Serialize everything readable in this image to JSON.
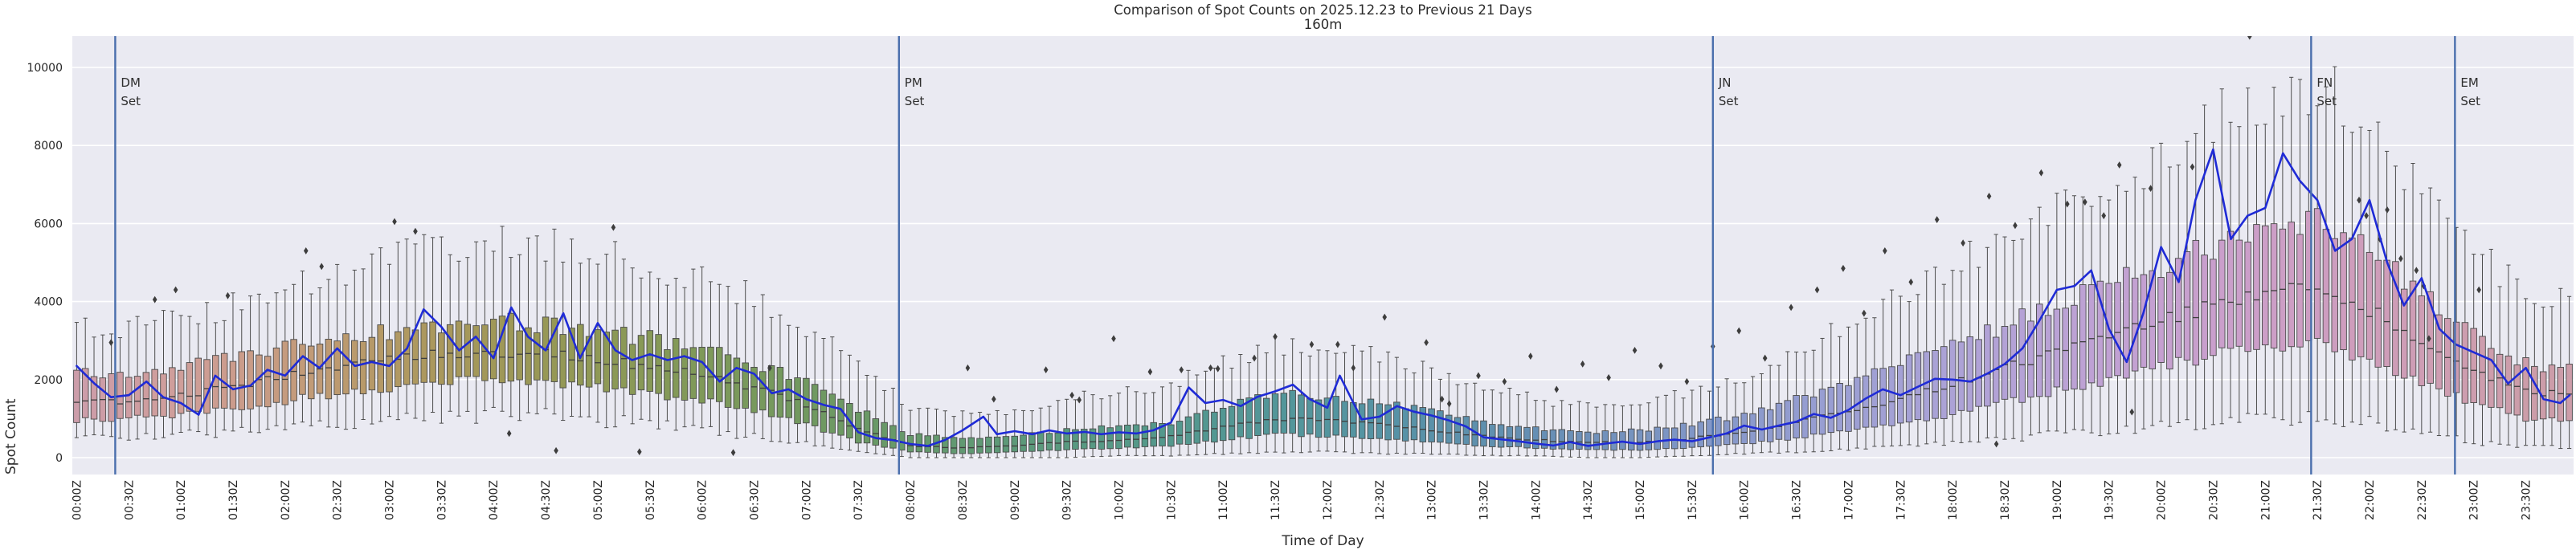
{
  "title": "Comparison of Spot Counts on 2025.12.23 to Previous 21 Days",
  "subtitle": "160m",
  "xlabel": "Time of Day",
  "ylabel": "Spot Count",
  "colors": {
    "figure_bg": "#ffffff",
    "axes_bg": "#eaeaf2",
    "grid": "#ffffff",
    "today_line": "#1f2bd6",
    "event_line": "#4a6fad",
    "outlier": "#3d3d3d",
    "box_edge": "#4a4a4a",
    "median": "#3f3f3f",
    "whisker": "#4d4d4d",
    "text": "#262626"
  },
  "chart_data": {
    "type": "box+line",
    "title": "Comparison of Spot Counts on 2025.12.23 to Previous 21 Days",
    "subtitle": "160m",
    "xlabel": "Time of Day",
    "ylabel": "Spot Count",
    "x_unit": "hours UTC, 5-minute bins",
    "ylim": [
      0,
      10000
    ],
    "yticks": [
      0,
      2000,
      4000,
      6000,
      8000,
      10000
    ],
    "grid": "horizontal white on lavender",
    "legend": "none",
    "xticklabels": [
      "00:00Z",
      "00:30Z",
      "01:00Z",
      "01:30Z",
      "02:00Z",
      "02:30Z",
      "03:00Z",
      "03:30Z",
      "04:00Z",
      "04:30Z",
      "05:00Z",
      "05:30Z",
      "06:00Z",
      "06:30Z",
      "07:00Z",
      "07:30Z",
      "08:00Z",
      "08:30Z",
      "09:00Z",
      "09:30Z",
      "10:00Z",
      "10:30Z",
      "11:00Z",
      "11:30Z",
      "12:00Z",
      "12:30Z",
      "13:00Z",
      "13:30Z",
      "14:00Z",
      "14:30Z",
      "15:00Z",
      "15:30Z",
      "16:00Z",
      "16:30Z",
      "17:00Z",
      "17:30Z",
      "18:00Z",
      "18:30Z",
      "19:00Z",
      "19:30Z",
      "20:00Z",
      "20:30Z",
      "21:00Z",
      "21:30Z",
      "22:00Z",
      "22:30Z",
      "23:00Z",
      "23:30Z"
    ],
    "boxes_note": "Previous-21-day distribution per time-of-day bin; columns: t_hours, whisker_lo, q1, median, q3, whisker_hi, box_color. Values in spot counts, read at 30-min anchors.",
    "boxes": [
      [
        0.0,
        500,
        950,
        1400,
        2150,
        3300,
        "#cc9daa"
      ],
      [
        0.5,
        550,
        1000,
        1450,
        2200,
        3350,
        "#ce9da2"
      ],
      [
        1.0,
        600,
        1100,
        1600,
        2350,
        3550,
        "#cf9e9a"
      ],
      [
        1.5,
        650,
        1250,
        1800,
        2550,
        3900,
        "#cb9c8c"
      ],
      [
        2.0,
        750,
        1450,
        2100,
        2850,
        4400,
        "#c59b7e"
      ],
      [
        2.5,
        850,
        1650,
        2350,
        3050,
        4800,
        "#bd9a70"
      ],
      [
        3.0,
        950,
        1800,
        2550,
        3250,
        5100,
        "#b39964"
      ],
      [
        3.5,
        1050,
        1950,
        2650,
        3400,
        5400,
        "#a9985c"
      ],
      [
        4.0,
        1100,
        2000,
        2700,
        3500,
        5600,
        "#a09858"
      ],
      [
        4.5,
        1050,
        1950,
        2650,
        3400,
        5500,
        "#979856"
      ],
      [
        5.0,
        950,
        1800,
        2500,
        3250,
        5200,
        "#8f9956"
      ],
      [
        5.5,
        850,
        1650,
        2350,
        3050,
        4900,
        "#879957"
      ],
      [
        6.0,
        700,
        1450,
        2100,
        2750,
        4500,
        "#7f9959"
      ],
      [
        6.5,
        550,
        1200,
        1800,
        2450,
        4100,
        "#78995c"
      ],
      [
        7.0,
        350,
        850,
        1350,
        1950,
        3400,
        "#719960"
      ],
      [
        7.5,
        150,
        400,
        750,
        1250,
        2400,
        "#6b9965"
      ],
      [
        8.0,
        0,
        150,
        300,
        600,
        1300,
        "#66996b"
      ],
      [
        8.5,
        0,
        100,
        250,
        500,
        1100,
        "#619972"
      ],
      [
        9.0,
        0,
        150,
        300,
        550,
        1200,
        "#5d9979"
      ],
      [
        9.5,
        0,
        200,
        400,
        700,
        1500,
        "#599980"
      ],
      [
        10.0,
        50,
        250,
        450,
        800,
        1700,
        "#569987"
      ],
      [
        10.5,
        50,
        300,
        550,
        900,
        1900,
        "#54988d"
      ],
      [
        11.0,
        100,
        450,
        800,
        1300,
        2400,
        "#539793"
      ],
      [
        11.5,
        150,
        600,
        1000,
        1650,
        2900,
        "#539699"
      ],
      [
        12.0,
        150,
        550,
        950,
        1550,
        2800,
        "#54959e"
      ],
      [
        12.5,
        100,
        500,
        850,
        1400,
        2600,
        "#5693a4"
      ],
      [
        13.0,
        100,
        400,
        700,
        1200,
        2200,
        "#5a91a9"
      ],
      [
        13.5,
        50,
        300,
        550,
        950,
        1800,
        "#5f90ae"
      ],
      [
        14.0,
        50,
        250,
        450,
        750,
        1500,
        "#668fb4"
      ],
      [
        14.5,
        0,
        200,
        400,
        650,
        1300,
        "#6e90ba"
      ],
      [
        15.0,
        0,
        200,
        400,
        700,
        1400,
        "#7793c0"
      ],
      [
        15.5,
        50,
        250,
        500,
        850,
        1700,
        "#8096c6"
      ],
      [
        16.0,
        100,
        350,
        650,
        1100,
        2100,
        "#8a99cb"
      ],
      [
        16.5,
        150,
        500,
        900,
        1500,
        2800,
        "#939cd0"
      ],
      [
        17.0,
        200,
        700,
        1200,
        1900,
        3400,
        "#9c9fd3"
      ],
      [
        17.5,
        300,
        900,
        1500,
        2400,
        4100,
        "#a4a1d5"
      ],
      [
        18.0,
        400,
        1100,
        1900,
        2900,
        4900,
        "#aca2d6"
      ],
      [
        18.5,
        500,
        1400,
        2300,
        3400,
        5700,
        "#b3a2d6"
      ],
      [
        19.0,
        600,
        1700,
        2700,
        3900,
        6400,
        "#baa2d5"
      ],
      [
        19.5,
        700,
        2000,
        3100,
        4400,
        7100,
        "#c0a1d3"
      ],
      [
        20.0,
        800,
        2300,
        3500,
        4900,
        7800,
        "#c5a0d0"
      ],
      [
        20.5,
        900,
        2600,
        3900,
        5400,
        8600,
        "#c99fcc"
      ],
      [
        21.0,
        1000,
        2800,
        4200,
        5800,
        9300,
        "#cc9ec7"
      ],
      [
        21.5,
        1000,
        2900,
        4300,
        6000,
        9600,
        "#cd9dc1"
      ],
      [
        22.0,
        900,
        2500,
        3800,
        5300,
        8600,
        "#ce9dba"
      ],
      [
        22.5,
        600,
        1900,
        3000,
        4200,
        7000,
        "#ce9db4"
      ],
      [
        23.0,
        400,
        1400,
        2200,
        3100,
        5300,
        "#cd9dae"
      ],
      [
        23.5,
        300,
        1000,
        1700,
        2400,
        4200,
        "#cc9da9"
      ]
    ],
    "line": {
      "name": "2025.12.23 spot counts",
      "color": "#1f2bd6",
      "points": [
        [
          0,
          2350
        ],
        [
          0.17,
          1900
        ],
        [
          0.33,
          1550
        ],
        [
          0.5,
          1600
        ],
        [
          0.67,
          1950
        ],
        [
          0.83,
          1550
        ],
        [
          1.0,
          1400
        ],
        [
          1.17,
          1100
        ],
        [
          1.33,
          2100
        ],
        [
          1.5,
          1750
        ],
        [
          1.67,
          1850
        ],
        [
          1.83,
          2250
        ],
        [
          2.0,
          2100
        ],
        [
          2.17,
          2600
        ],
        [
          2.33,
          2300
        ],
        [
          2.5,
          2800
        ],
        [
          2.67,
          2350
        ],
        [
          2.83,
          2450
        ],
        [
          3.0,
          2350
        ],
        [
          3.17,
          2800
        ],
        [
          3.33,
          3800
        ],
        [
          3.5,
          3350
        ],
        [
          3.67,
          2750
        ],
        [
          3.83,
          3100
        ],
        [
          4.0,
          2550
        ],
        [
          4.17,
          3850
        ],
        [
          4.33,
          3100
        ],
        [
          4.5,
          2750
        ],
        [
          4.67,
          3700
        ],
        [
          4.83,
          2550
        ],
        [
          5.0,
          3450
        ],
        [
          5.17,
          2750
        ],
        [
          5.33,
          2500
        ],
        [
          5.5,
          2650
        ],
        [
          5.67,
          2500
        ],
        [
          5.83,
          2600
        ],
        [
          6.0,
          2450
        ],
        [
          6.17,
          1950
        ],
        [
          6.33,
          2300
        ],
        [
          6.5,
          2150
        ],
        [
          6.67,
          1650
        ],
        [
          6.83,
          1750
        ],
        [
          7.0,
          1500
        ],
        [
          7.17,
          1350
        ],
        [
          7.33,
          1250
        ],
        [
          7.5,
          650
        ],
        [
          7.67,
          500
        ],
        [
          7.83,
          450
        ],
        [
          8.0,
          350
        ],
        [
          8.17,
          300
        ],
        [
          8.33,
          450
        ],
        [
          8.5,
          700
        ],
        [
          8.7,
          1050
        ],
        [
          8.83,
          600
        ],
        [
          9.0,
          680
        ],
        [
          9.17,
          600
        ],
        [
          9.33,
          700
        ],
        [
          9.5,
          620
        ],
        [
          9.67,
          660
        ],
        [
          9.83,
          600
        ],
        [
          10.0,
          650
        ],
        [
          10.17,
          620
        ],
        [
          10.33,
          700
        ],
        [
          10.5,
          900
        ],
        [
          10.67,
          1800
        ],
        [
          10.83,
          1400
        ],
        [
          11.0,
          1480
        ],
        [
          11.17,
          1320
        ],
        [
          11.33,
          1560
        ],
        [
          11.5,
          1700
        ],
        [
          11.67,
          1870
        ],
        [
          11.83,
          1500
        ],
        [
          12.0,
          1280
        ],
        [
          12.12,
          2100
        ],
        [
          12.33,
          980
        ],
        [
          12.5,
          1050
        ],
        [
          12.67,
          1320
        ],
        [
          12.83,
          1180
        ],
        [
          13.0,
          1080
        ],
        [
          13.17,
          950
        ],
        [
          13.33,
          800
        ],
        [
          13.5,
          520
        ],
        [
          13.67,
          470
        ],
        [
          13.83,
          420
        ],
        [
          14.0,
          360
        ],
        [
          14.17,
          310
        ],
        [
          14.33,
          400
        ],
        [
          14.5,
          300
        ],
        [
          14.67,
          360
        ],
        [
          14.83,
          410
        ],
        [
          15.0,
          350
        ],
        [
          15.17,
          420
        ],
        [
          15.33,
          460
        ],
        [
          15.5,
          420
        ],
        [
          15.67,
          520
        ],
        [
          15.83,
          620
        ],
        [
          16.0,
          820
        ],
        [
          16.17,
          720
        ],
        [
          16.33,
          820
        ],
        [
          16.5,
          920
        ],
        [
          16.67,
          1120
        ],
        [
          16.83,
          1020
        ],
        [
          17.0,
          1220
        ],
        [
          17.17,
          1520
        ],
        [
          17.33,
          1750
        ],
        [
          17.5,
          1600
        ],
        [
          17.67,
          1820
        ],
        [
          17.83,
          2020
        ],
        [
          18.0,
          2000
        ],
        [
          18.17,
          1950
        ],
        [
          18.33,
          2150
        ],
        [
          18.5,
          2400
        ],
        [
          18.67,
          2800
        ],
        [
          18.83,
          3500
        ],
        [
          19.0,
          4300
        ],
        [
          19.17,
          4400
        ],
        [
          19.33,
          4800
        ],
        [
          19.5,
          3300
        ],
        [
          19.67,
          2450
        ],
        [
          19.83,
          3700
        ],
        [
          20.0,
          5400
        ],
        [
          20.17,
          4500
        ],
        [
          20.33,
          6600
        ],
        [
          20.5,
          7900
        ],
        [
          20.67,
          5600
        ],
        [
          20.83,
          6200
        ],
        [
          21.0,
          6400
        ],
        [
          21.17,
          7800
        ],
        [
          21.33,
          7100
        ],
        [
          21.5,
          6600
        ],
        [
          21.67,
          5300
        ],
        [
          21.83,
          5600
        ],
        [
          22.0,
          6600
        ],
        [
          22.17,
          5000
        ],
        [
          22.33,
          3900
        ],
        [
          22.5,
          4600
        ],
        [
          22.67,
          3300
        ],
        [
          22.83,
          2900
        ],
        [
          23.0,
          2700
        ],
        [
          23.17,
          2500
        ],
        [
          23.33,
          1900
        ],
        [
          23.5,
          2300
        ],
        [
          23.67,
          1500
        ],
        [
          23.83,
          1400
        ],
        [
          23.92,
          1600
        ]
      ]
    },
    "outliers_note": "black diamond fliers, [t_hours, spot_count]",
    "outliers": [
      [
        0.33,
        2950
      ],
      [
        0.75,
        4050
      ],
      [
        0.95,
        4300
      ],
      [
        1.45,
        4150
      ],
      [
        2.2,
        5300
      ],
      [
        2.35,
        4900
      ],
      [
        3.05,
        6050
      ],
      [
        3.25,
        5800
      ],
      [
        4.15,
        620
      ],
      [
        4.6,
        180
      ],
      [
        5.15,
        5900
      ],
      [
        5.4,
        150
      ],
      [
        6.3,
        130
      ],
      [
        6.65,
        2300
      ],
      [
        8.55,
        2300
      ],
      [
        8.8,
        1500
      ],
      [
        9.3,
        2250
      ],
      [
        9.55,
        1600
      ],
      [
        9.62,
        1480
      ],
      [
        9.95,
        3050
      ],
      [
        10.3,
        2200
      ],
      [
        10.6,
        2250
      ],
      [
        10.88,
        2300
      ],
      [
        10.95,
        2280
      ],
      [
        11.3,
        2550
      ],
      [
        11.5,
        3100
      ],
      [
        11.85,
        2900
      ],
      [
        12.1,
        2900
      ],
      [
        12.25,
        2300
      ],
      [
        12.55,
        3600
      ],
      [
        12.95,
        2950
      ],
      [
        13.1,
        1500
      ],
      [
        13.17,
        1380
      ],
      [
        13.45,
        2100
      ],
      [
        13.7,
        1950
      ],
      [
        13.95,
        2600
      ],
      [
        14.2,
        1750
      ],
      [
        14.45,
        2400
      ],
      [
        14.7,
        2050
      ],
      [
        14.95,
        2750
      ],
      [
        15.2,
        2350
      ],
      [
        15.45,
        1950
      ],
      [
        15.7,
        2850
      ],
      [
        15.95,
        3250
      ],
      [
        16.2,
        2550
      ],
      [
        16.45,
        3850
      ],
      [
        16.7,
        4300
      ],
      [
        16.95,
        4850
      ],
      [
        17.15,
        3700
      ],
      [
        17.35,
        5300
      ],
      [
        17.6,
        4500
      ],
      [
        17.85,
        6100
      ],
      [
        18.1,
        5500
      ],
      [
        18.35,
        6700
      ],
      [
        18.42,
        350
      ],
      [
        18.6,
        5950
      ],
      [
        18.85,
        7300
      ],
      [
        19.1,
        6500
      ],
      [
        19.27,
        6550
      ],
      [
        19.45,
        6200
      ],
      [
        19.6,
        7500
      ],
      [
        19.72,
        1170
      ],
      [
        19.9,
        6900
      ],
      [
        20.3,
        7450
      ],
      [
        20.85,
        10800
      ],
      [
        21.9,
        6600
      ],
      [
        21.97,
        6200
      ],
      [
        22.1,
        5600
      ],
      [
        22.17,
        6350
      ],
      [
        22.3,
        5100
      ],
      [
        22.45,
        4800
      ],
      [
        22.52,
        4400
      ],
      [
        22.57,
        3050
      ],
      [
        23.05,
        4300
      ]
    ],
    "event_lines": [
      {
        "t": 0.37,
        "line1": "DM",
        "line2": "Set"
      },
      {
        "t": 7.89,
        "line1": "PM",
        "line2": "Set"
      },
      {
        "t": 15.7,
        "line1": "JN",
        "line2": "Set"
      },
      {
        "t": 21.44,
        "line1": "FN",
        "line2": "Set"
      },
      {
        "t": 22.82,
        "line1": "EM",
        "line2": "Set"
      }
    ]
  }
}
